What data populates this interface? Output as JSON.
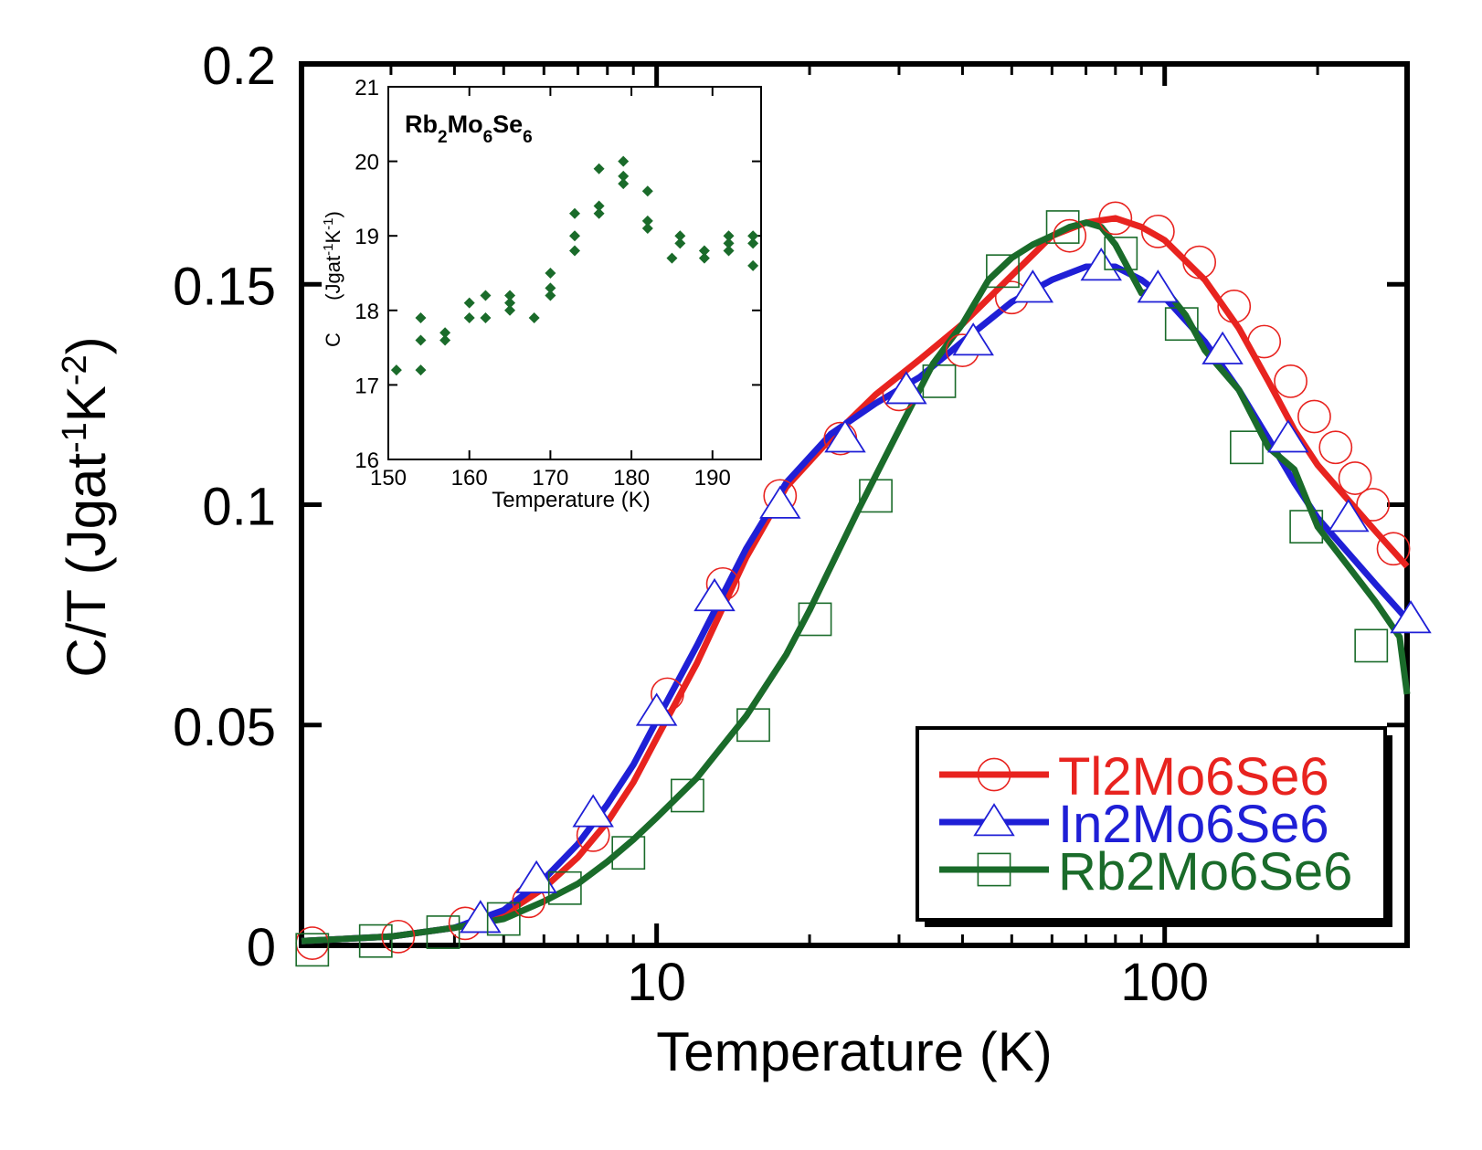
{
  "chart_data": [
    {
      "type": "line",
      "title": "",
      "xlabel": "Temperature (K)",
      "ylabel": "C/T (Jgat",
      "ylabel_sup1": "-1",
      "ylabel_mid": "K",
      "ylabel_sup2": "-2",
      "ylabel_end": ")",
      "xscale": "log",
      "xlim": [
        2,
        300
      ],
      "ylim": [
        0,
        0.2
      ],
      "xticks": [
        {
          "value": 10,
          "label": "10"
        },
        {
          "value": 100,
          "label": "100"
        }
      ],
      "yticks": [
        {
          "value": 0,
          "label": "0"
        },
        {
          "value": 0.05,
          "label": "0.05"
        },
        {
          "value": 0.1,
          "label": "0.1"
        },
        {
          "value": 0.15,
          "label": "0.15"
        },
        {
          "value": 0.2,
          "label": "0.2"
        }
      ],
      "legend_position": "bottom-right",
      "series": [
        {
          "name": "Tl2Mo6Se6",
          "color": "#e8231f",
          "marker": "circle",
          "x": [
            2,
            3,
            4,
            5,
            6,
            7,
            8,
            9,
            10,
            12,
            15,
            18,
            22,
            27,
            33,
            40,
            50,
            60,
            70,
            80,
            90,
            100,
            120,
            140,
            160,
            180,
            200,
            230,
            260,
            300
          ],
          "y": [
            0.001,
            0.002,
            0.004,
            0.007,
            0.013,
            0.02,
            0.028,
            0.037,
            0.047,
            0.064,
            0.088,
            0.104,
            0.115,
            0.125,
            0.133,
            0.141,
            0.152,
            0.161,
            0.164,
            0.165,
            0.163,
            0.16,
            0.151,
            0.14,
            0.128,
            0.117,
            0.109,
            0.101,
            0.094,
            0.086
          ],
          "marker_x": [
            2.1,
            3.1,
            4.2,
            5.6,
            7.5,
            10.5,
            13.5,
            17.5,
            23,
            30,
            40,
            50,
            65,
            80,
            97,
            117,
            137,
            157,
            177,
            197,
            217,
            237,
            257,
            282
          ],
          "marker_y": [
            0.0005,
            0.002,
            0.005,
            0.01,
            0.025,
            0.057,
            0.082,
            0.102,
            0.115,
            0.125,
            0.135,
            0.147,
            0.161,
            0.165,
            0.162,
            0.155,
            0.145,
            0.137,
            0.128,
            0.12,
            0.113,
            0.106,
            0.1,
            0.09
          ]
        },
        {
          "name": "In2Mo6Se6",
          "color": "#1f1fd6",
          "marker": "triangle",
          "x": [
            2,
            3,
            4,
            5,
            6,
            7,
            8,
            9,
            10,
            12,
            15,
            18,
            22,
            27,
            33,
            40,
            50,
            60,
            70,
            80,
            90,
            100,
            120,
            140,
            160,
            180,
            200,
            230,
            260,
            300
          ],
          "y": [
            0.001,
            0.002,
            0.004,
            0.008,
            0.015,
            0.023,
            0.032,
            0.041,
            0.051,
            0.068,
            0.09,
            0.105,
            0.116,
            0.123,
            0.129,
            0.137,
            0.146,
            0.151,
            0.154,
            0.154,
            0.151,
            0.147,
            0.137,
            0.126,
            0.115,
            0.105,
            0.097,
            0.089,
            0.082,
            0.074
          ],
          "marker_x": [
            4.5,
            5.8,
            7.5,
            10,
            13,
            17.5,
            23.5,
            31,
            42,
            55,
            75,
            97,
            130,
            175,
            230,
            305
          ],
          "marker_y": [
            0.006,
            0.015,
            0.03,
            0.053,
            0.079,
            0.1,
            0.115,
            0.126,
            0.137,
            0.149,
            0.154,
            0.149,
            0.135,
            0.115,
            0.097,
            0.074
          ]
        },
        {
          "name": "Rb2Mo6Se6",
          "color": "#1a6b2a",
          "marker": "square",
          "x": [
            2,
            3,
            4,
            5,
            6,
            7,
            8,
            9,
            10,
            12,
            15,
            18,
            20,
            25,
            30,
            35,
            40,
            45,
            50,
            55,
            60,
            65,
            70,
            75,
            80,
            90,
            100,
            110,
            120,
            140,
            160,
            180,
            200,
            230,
            260,
            290,
            300
          ],
          "y": [
            0.001,
            0.002,
            0.004,
            0.006,
            0.01,
            0.014,
            0.019,
            0.024,
            0.029,
            0.038,
            0.052,
            0.066,
            0.076,
            0.099,
            0.117,
            0.132,
            0.141,
            0.151,
            0.156,
            0.159,
            0.161,
            0.163,
            0.164,
            0.163,
            0.159,
            0.148,
            0.149,
            0.143,
            0.135,
            0.126,
            0.113,
            0.108,
            0.095,
            0.086,
            0.078,
            0.07,
            0.057
          ],
          "marker_x": [
            2.1,
            2.8,
            3.8,
            5,
            6.6,
            8.8,
            11.5,
            15.5,
            20.5,
            27,
            36,
            48,
            63,
            82,
            108,
            145,
            190,
            255
          ],
          "marker_y": [
            -0.001,
            0.001,
            0.003,
            0.006,
            0.013,
            0.021,
            0.034,
            0.05,
            0.074,
            0.102,
            0.128,
            0.153,
            0.163,
            0.157,
            0.141,
            0.113,
            0.095,
            0.068
          ]
        }
      ]
    },
    {
      "type": "scatter",
      "title": "Rb",
      "title_sub1": "2",
      "title_mid": "Mo",
      "title_sub2": "6",
      "title_mid2": "Se",
      "title_sub3": "6",
      "xlabel": "Temperature (K)",
      "ylabel_c": "C",
      "ylabel_units": "(Jgat",
      "ylabel_sup1": "-1",
      "ylabel_mid": "K",
      "ylabel_sup2": "-1",
      "ylabel_end": ")",
      "xlim": [
        150,
        196
      ],
      "ylim": [
        16,
        21
      ],
      "xticks": [
        {
          "value": 150,
          "label": "150"
        },
        {
          "value": 160,
          "label": "160"
        },
        {
          "value": 170,
          "label": "170"
        },
        {
          "value": 180,
          "label": "180"
        },
        {
          "value": 190,
          "label": "190"
        }
      ],
      "yticks": [
        {
          "value": 16,
          "label": "16"
        },
        {
          "value": 17,
          "label": "17"
        },
        {
          "value": 18,
          "label": "18"
        },
        {
          "value": 19,
          "label": "19"
        },
        {
          "value": 20,
          "label": "20"
        },
        {
          "value": 21,
          "label": "21"
        }
      ],
      "marker_color": "#1a6b2a",
      "points": [
        {
          "x": 151,
          "y": 17.2
        },
        {
          "x": 154,
          "y": 17.2
        },
        {
          "x": 154,
          "y": 17.6
        },
        {
          "x": 154,
          "y": 17.9
        },
        {
          "x": 157,
          "y": 17.6
        },
        {
          "x": 157,
          "y": 17.7
        },
        {
          "x": 160,
          "y": 17.9
        },
        {
          "x": 160,
          "y": 18.1
        },
        {
          "x": 162,
          "y": 17.9
        },
        {
          "x": 162,
          "y": 18.2
        },
        {
          "x": 165,
          "y": 18.0
        },
        {
          "x": 165,
          "y": 18.1
        },
        {
          "x": 165,
          "y": 18.2
        },
        {
          "x": 168,
          "y": 17.9
        },
        {
          "x": 170,
          "y": 18.2
        },
        {
          "x": 170,
          "y": 18.3
        },
        {
          "x": 170,
          "y": 18.5
        },
        {
          "x": 173,
          "y": 18.8
        },
        {
          "x": 173,
          "y": 19.0
        },
        {
          "x": 173,
          "y": 19.3
        },
        {
          "x": 176,
          "y": 19.3
        },
        {
          "x": 176,
          "y": 19.4
        },
        {
          "x": 176,
          "y": 19.9
        },
        {
          "x": 179,
          "y": 19.7
        },
        {
          "x": 179,
          "y": 19.8
        },
        {
          "x": 179,
          "y": 20.0
        },
        {
          "x": 182,
          "y": 19.6
        },
        {
          "x": 182,
          "y": 19.2
        },
        {
          "x": 182,
          "y": 19.1
        },
        {
          "x": 185,
          "y": 18.7
        },
        {
          "x": 186,
          "y": 18.9
        },
        {
          "x": 186,
          "y": 19.0
        },
        {
          "x": 189,
          "y": 18.7
        },
        {
          "x": 189,
          "y": 18.8
        },
        {
          "x": 192,
          "y": 18.8
        },
        {
          "x": 192,
          "y": 18.9
        },
        {
          "x": 192,
          "y": 19.0
        },
        {
          "x": 195,
          "y": 18.6
        },
        {
          "x": 195,
          "y": 18.9
        },
        {
          "x": 195,
          "y": 19.0
        }
      ]
    }
  ]
}
